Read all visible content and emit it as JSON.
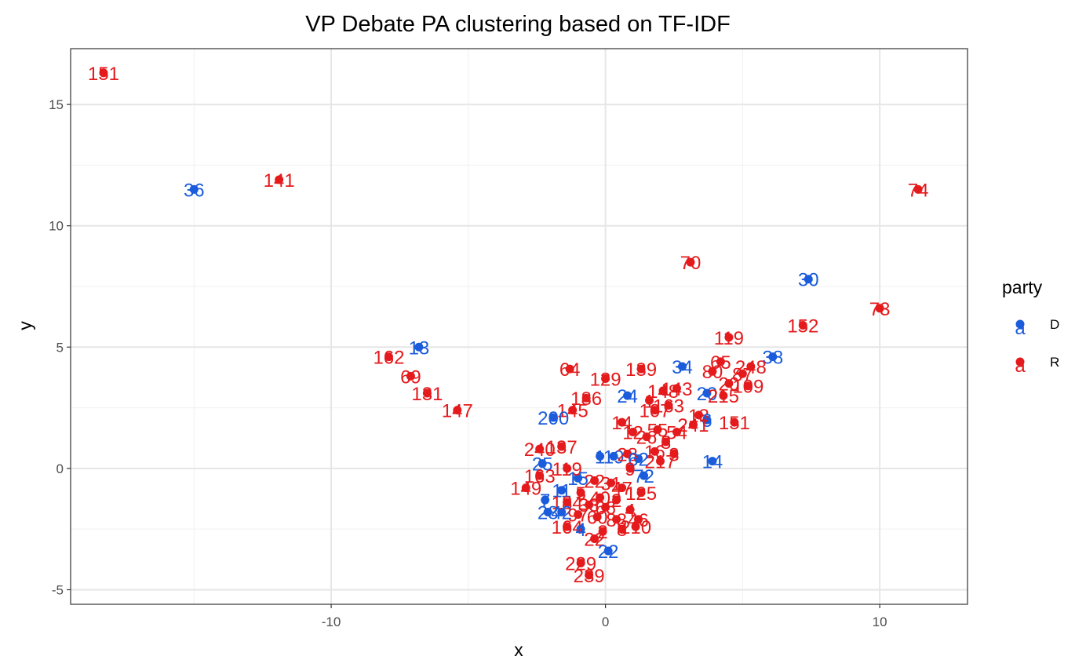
{
  "chart_data": {
    "type": "scatter",
    "title": "VP Debate PA clustering based on TF-IDF",
    "xlabel": "x",
    "ylabel": "y",
    "xlim": [
      -19.5,
      13.2
    ],
    "ylim": [
      -5.6,
      17.3
    ],
    "x_ticks": [
      -10,
      0,
      10
    ],
    "y_ticks": [
      -5,
      0,
      5,
      10,
      15
    ],
    "x_tick_labels": [
      "-10",
      "0",
      "10"
    ],
    "y_tick_labels": [
      "-5",
      "0",
      "5",
      "10",
      "15"
    ],
    "grid": true,
    "legend": {
      "title": "party",
      "placement": "right",
      "entries": [
        {
          "label": "D",
          "color": "#1a5cdb",
          "glyph": "a"
        },
        {
          "label": "R",
          "color": "#e41a1c",
          "glyph": "a"
        }
      ]
    },
    "colors": {
      "D": "#1a5cdb",
      "R": "#e41a1c"
    },
    "points": [
      {
        "x": -18.3,
        "y": 16.3,
        "label": "151",
        "party": "R"
      },
      {
        "x": -15.0,
        "y": 11.5,
        "label": "36",
        "party": "D"
      },
      {
        "x": -11.9,
        "y": 11.9,
        "label": "141",
        "party": "R"
      },
      {
        "x": 11.4,
        "y": 11.5,
        "label": "74",
        "party": "R"
      },
      {
        "x": 3.1,
        "y": 8.5,
        "label": "70",
        "party": "R"
      },
      {
        "x": 7.4,
        "y": 7.8,
        "label": "30",
        "party": "D"
      },
      {
        "x": 10.0,
        "y": 6.6,
        "label": "73",
        "party": "R"
      },
      {
        "x": 7.2,
        "y": 5.9,
        "label": "152",
        "party": "R"
      },
      {
        "x": 4.5,
        "y": 5.4,
        "label": "119",
        "party": "R"
      },
      {
        "x": -6.8,
        "y": 5.0,
        "label": "13",
        "party": "D"
      },
      {
        "x": -7.9,
        "y": 4.6,
        "label": "162",
        "party": "R"
      },
      {
        "x": -7.1,
        "y": 3.8,
        "label": "69",
        "party": "R"
      },
      {
        "x": -6.5,
        "y": 3.1,
        "label": "131",
        "party": "R"
      },
      {
        "x": -5.4,
        "y": 2.4,
        "label": "147",
        "party": "R"
      },
      {
        "x": 6.1,
        "y": 4.6,
        "label": "38",
        "party": "D"
      },
      {
        "x": 2.8,
        "y": 4.2,
        "label": "34",
        "party": "D"
      },
      {
        "x": -1.3,
        "y": 4.1,
        "label": "64",
        "party": "R"
      },
      {
        "x": 1.3,
        "y": 4.1,
        "label": "139",
        "party": "R"
      },
      {
        "x": 0.0,
        "y": 3.7,
        "label": "129",
        "party": "R"
      },
      {
        "x": 4.2,
        "y": 4.4,
        "label": "65",
        "party": "R"
      },
      {
        "x": 5.3,
        "y": 4.2,
        "label": "248",
        "party": "R"
      },
      {
        "x": 3.9,
        "y": 4.0,
        "label": "80",
        "party": "R"
      },
      {
        "x": 5.0,
        "y": 3.9,
        "label": "87",
        "party": "R"
      },
      {
        "x": 4.5,
        "y": 3.5,
        "label": "20",
        "party": "R"
      },
      {
        "x": 5.2,
        "y": 3.4,
        "label": "109",
        "party": "R"
      },
      {
        "x": 2.6,
        "y": 3.3,
        "label": "143",
        "party": "R"
      },
      {
        "x": 0.8,
        "y": 3.0,
        "label": "24",
        "party": "D"
      },
      {
        "x": 2.1,
        "y": 3.2,
        "label": "148",
        "party": "R"
      },
      {
        "x": -0.7,
        "y": 2.9,
        "label": "186",
        "party": "R"
      },
      {
        "x": 3.7,
        "y": 3.1,
        "label": "20",
        "party": "D"
      },
      {
        "x": 4.3,
        "y": 3.0,
        "label": "215",
        "party": "R"
      },
      {
        "x": 1.6,
        "y": 2.8,
        "label": "1",
        "party": "R"
      },
      {
        "x": 2.3,
        "y": 2.6,
        "label": "163",
        "party": "R"
      },
      {
        "x": 1.8,
        "y": 2.4,
        "label": "107",
        "party": "R"
      },
      {
        "x": -1.2,
        "y": 2.4,
        "label": "145",
        "party": "R"
      },
      {
        "x": -1.9,
        "y": 2.1,
        "label": "200",
        "party": "D"
      },
      {
        "x": 3.4,
        "y": 2.2,
        "label": "18",
        "party": "R"
      },
      {
        "x": 3.7,
        "y": 2.0,
        "label": "6",
        "party": "D"
      },
      {
        "x": 4.7,
        "y": 1.9,
        "label": "151",
        "party": "R"
      },
      {
        "x": 3.2,
        "y": 1.8,
        "label": "241",
        "party": "R"
      },
      {
        "x": 1.9,
        "y": 1.6,
        "label": "55",
        "party": "R"
      },
      {
        "x": 2.6,
        "y": 1.5,
        "label": "54",
        "party": "R"
      },
      {
        "x": 0.6,
        "y": 1.9,
        "label": "14",
        "party": "R"
      },
      {
        "x": 1.0,
        "y": 1.5,
        "label": "12",
        "party": "R"
      },
      {
        "x": 1.5,
        "y": 1.3,
        "label": "26",
        "party": "R"
      },
      {
        "x": 2.2,
        "y": 1.1,
        "label": "8",
        "party": "R"
      },
      {
        "x": 1.8,
        "y": 0.7,
        "label": "16",
        "party": "R"
      },
      {
        "x": 2.5,
        "y": 0.6,
        "label": "3",
        "party": "R"
      },
      {
        "x": 2.0,
        "y": 0.3,
        "label": "217",
        "party": "R"
      },
      {
        "x": 3.9,
        "y": 0.3,
        "label": "14",
        "party": "D"
      },
      {
        "x": -2.4,
        "y": 0.8,
        "label": "240",
        "party": "R"
      },
      {
        "x": -1.6,
        "y": 0.9,
        "label": "137",
        "party": "R"
      },
      {
        "x": -0.2,
        "y": 0.5,
        "label": "1",
        "party": "D"
      },
      {
        "x": 0.3,
        "y": 0.5,
        "label": "19",
        "party": "D"
      },
      {
        "x": 0.8,
        "y": 0.6,
        "label": "28",
        "party": "R"
      },
      {
        "x": 1.2,
        "y": 0.4,
        "label": "62",
        "party": "D"
      },
      {
        "x": -2.3,
        "y": 0.2,
        "label": "25",
        "party": "D"
      },
      {
        "x": -1.4,
        "y": 0.0,
        "label": "119",
        "party": "R"
      },
      {
        "x": 0.9,
        "y": 0.0,
        "label": "9",
        "party": "R"
      },
      {
        "x": 1.4,
        "y": -0.3,
        "label": "72",
        "party": "D"
      },
      {
        "x": -2.4,
        "y": -0.3,
        "label": "163",
        "party": "R"
      },
      {
        "x": -1.0,
        "y": -0.4,
        "label": "15",
        "party": "D"
      },
      {
        "x": -0.4,
        "y": -0.5,
        "label": "22",
        "party": "R"
      },
      {
        "x": 0.2,
        "y": -0.6,
        "label": "31",
        "party": "R"
      },
      {
        "x": 0.6,
        "y": -0.8,
        "label": "47",
        "party": "R"
      },
      {
        "x": 1.3,
        "y": -1.0,
        "label": "125",
        "party": "R"
      },
      {
        "x": -2.9,
        "y": -0.8,
        "label": "149",
        "party": "R"
      },
      {
        "x": -1.6,
        "y": -0.9,
        "label": "11",
        "party": "D"
      },
      {
        "x": -0.9,
        "y": -1.0,
        "label": "5",
        "party": "R"
      },
      {
        "x": -0.2,
        "y": -1.2,
        "label": "40",
        "party": "R"
      },
      {
        "x": 0.4,
        "y": -1.3,
        "label": "2",
        "party": "R"
      },
      {
        "x": -2.2,
        "y": -1.3,
        "label": "7",
        "party": "D"
      },
      {
        "x": -1.4,
        "y": -1.4,
        "label": "184",
        "party": "R"
      },
      {
        "x": -0.6,
        "y": -1.5,
        "label": "33",
        "party": "R"
      },
      {
        "x": 0.0,
        "y": -1.6,
        "label": "66",
        "party": "R"
      },
      {
        "x": 0.9,
        "y": -1.7,
        "label": "4",
        "party": "R"
      },
      {
        "x": -2.1,
        "y": -1.8,
        "label": "28",
        "party": "D"
      },
      {
        "x": -1.6,
        "y": -1.8,
        "label": "42",
        "party": "D"
      },
      {
        "x": -1.0,
        "y": -1.9,
        "label": "97",
        "party": "R"
      },
      {
        "x": -0.3,
        "y": -2.0,
        "label": "60",
        "party": "R"
      },
      {
        "x": 0.4,
        "y": -2.1,
        "label": "88",
        "party": "R"
      },
      {
        "x": 1.2,
        "y": -2.1,
        "label": "46",
        "party": "R"
      },
      {
        "x": -1.4,
        "y": -2.4,
        "label": "164",
        "party": "R"
      },
      {
        "x": -0.9,
        "y": -2.5,
        "label": "4",
        "party": "D"
      },
      {
        "x": -0.1,
        "y": -2.6,
        "label": "2",
        "party": "R"
      },
      {
        "x": 0.6,
        "y": -2.5,
        "label": "8",
        "party": "R"
      },
      {
        "x": 1.1,
        "y": -2.4,
        "label": "210",
        "party": "R"
      },
      {
        "x": -0.4,
        "y": -2.9,
        "label": "22",
        "party": "R"
      },
      {
        "x": 0.1,
        "y": -3.4,
        "label": "22",
        "party": "D"
      },
      {
        "x": -0.9,
        "y": -3.9,
        "label": "229",
        "party": "R"
      },
      {
        "x": -0.6,
        "y": -4.4,
        "label": "239",
        "party": "R"
      }
    ]
  }
}
